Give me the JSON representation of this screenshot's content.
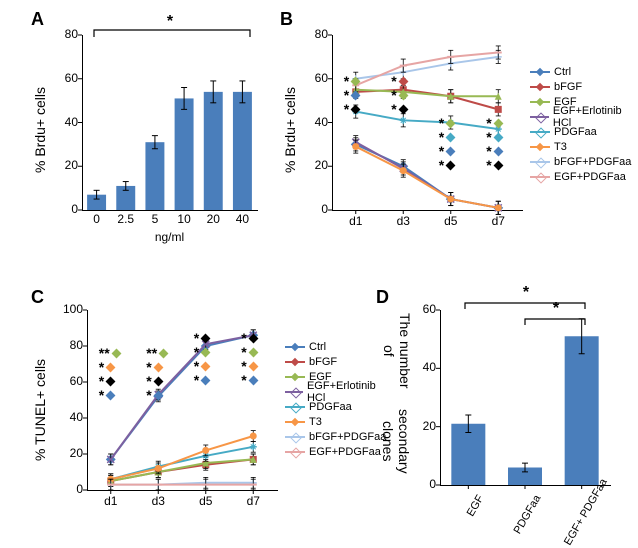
{
  "panelLabels": {
    "A": "A",
    "B": "B",
    "C": "C",
    "D": "D"
  },
  "colors": {
    "barBlue": "#4a7ebb",
    "axis": "#000000",
    "sigBlack": "#000000",
    "series": {
      "Ctrl": {
        "color": "#4a7ebb",
        "marker": "diamond"
      },
      "bFGF": {
        "color": "#be4b48",
        "marker": "square"
      },
      "EGF": {
        "color": "#98b954",
        "marker": "triangle"
      },
      "EGF+Erlotinib HCl": {
        "color": "#7d60a0",
        "marker": "x"
      },
      "PDGFaa": {
        "color": "#46aac5",
        "marker": "star"
      },
      "T3": {
        "color": "#f79646",
        "marker": "circle"
      },
      "bFGF+PDGFaa": {
        "color": "#a9c6e9",
        "marker": "plus"
      },
      "EGF+PDGFaa": {
        "color": "#e6a5a4",
        "marker": "dash"
      }
    }
  },
  "A": {
    "ylabel": "% Brdu+ cells",
    "ymin": 0,
    "ymax": 80,
    "ytick": 20,
    "categories": [
      "0",
      "2.5",
      "5",
      "10",
      "20",
      "40"
    ],
    "values": [
      7,
      11,
      31,
      51,
      54,
      54
    ],
    "err": [
      2,
      2,
      3,
      5,
      5,
      5
    ],
    "xunit": "ng/ml",
    "sig": "*",
    "barColor": "#4a7ebb"
  },
  "B": {
    "ylabel": "% Brdu+ cells",
    "ymin": 0,
    "ymax": 80,
    "ytick": 20,
    "x": [
      "d1",
      "d3",
      "d5",
      "d7"
    ],
    "series": {
      "Ctrl": [
        30,
        20,
        5,
        1
      ],
      "bFGF": [
        54,
        55,
        52,
        46
      ],
      "EGF": [
        55,
        54,
        52,
        52
      ],
      "EGF+Erlotinib HCl": [
        31,
        19,
        5,
        1
      ],
      "PDGFaa": [
        45,
        41,
        40,
        37
      ],
      "T3": [
        29,
        18,
        5,
        1
      ],
      "bFGF+PDGFaa": [
        60,
        63,
        67,
        70
      ],
      "EGF+PDGFaa": [
        57,
        66,
        70,
        72
      ]
    },
    "err": 3,
    "sig": {
      "d1": [
        {
          "c": "#98b954"
        },
        {
          "c": "#4a7ebb"
        },
        {
          "c": "#000000"
        }
      ],
      "d3": [
        {
          "c": "#be4b48"
        },
        {
          "c": "#98b954"
        },
        {
          "c": "#000000"
        }
      ],
      "d5": [
        {
          "c": "#98b954"
        },
        {
          "c": "#46aac5"
        },
        {
          "c": "#4a7ebb"
        },
        {
          "c": "#000000"
        }
      ],
      "d7": [
        {
          "c": "#98b954"
        },
        {
          "c": "#46aac5"
        },
        {
          "c": "#4a7ebb"
        },
        {
          "c": "#000000"
        }
      ]
    }
  },
  "C": {
    "ylabel": "% TUNEL+ cells",
    "ymin": 0,
    "ymax": 100,
    "ytick": 20,
    "x": [
      "d1",
      "d3",
      "d5",
      "d7"
    ],
    "series": {
      "Ctrl": [
        17,
        52,
        80,
        86
      ],
      "bFGF": [
        5,
        10,
        14,
        17
      ],
      "EGF": [
        5,
        10,
        15,
        17
      ],
      "EGF+Erlotinib HCl": [
        17,
        53,
        81,
        86
      ],
      "PDGFaa": [
        6,
        13,
        19,
        24
      ],
      "T3": [
        6,
        12,
        22,
        30
      ],
      "bFGF+PDGFaa": [
        3,
        3,
        4,
        4
      ],
      "EGF+PDGFaa": [
        3,
        3,
        3,
        3
      ]
    },
    "err": 3,
    "sig": {
      "d1": [
        {
          "c": "#98b954",
          "dbl": true
        },
        {
          "c": "#f79646"
        },
        {
          "c": "#000000"
        },
        {
          "c": "#4a7ebb"
        }
      ],
      "d3": [
        {
          "c": "#98b954",
          "dbl": true
        },
        {
          "c": "#f79646"
        },
        {
          "c": "#000000"
        },
        {
          "c": "#4a7ebb"
        }
      ],
      "d5": [
        {
          "c": "#000000"
        },
        {
          "c": "#98b954"
        },
        {
          "c": "#f79646"
        },
        {
          "c": "#4a7ebb"
        }
      ],
      "d7": [
        {
          "c": "#000000"
        },
        {
          "c": "#98b954"
        },
        {
          "c": "#f79646"
        },
        {
          "c": "#4a7ebb"
        }
      ]
    }
  },
  "D": {
    "ylabel_line1": "The number of",
    "ylabel_line2": "secondary clones",
    "ymin": 0,
    "ymax": 60,
    "ytick": 20,
    "categories": [
      "EGF",
      "PDGFaa",
      "EGF+\nPDGFaa"
    ],
    "values": [
      21,
      6,
      51
    ],
    "err": [
      3,
      1.5,
      6
    ],
    "barColor": "#4a7ebb",
    "sig": "*"
  }
}
